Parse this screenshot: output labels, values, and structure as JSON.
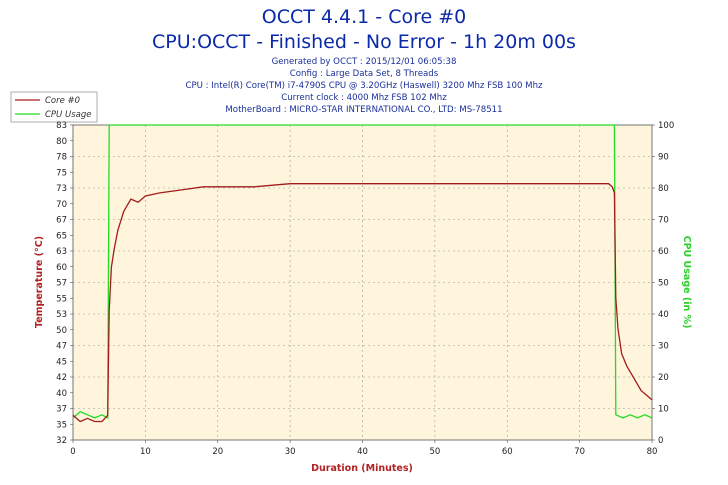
{
  "header": {
    "title": "OCCT 4.4.1 - Core #0",
    "subtitle": "CPU:OCCT - Finished - No Error - 1h 20m 00s",
    "info_lines": [
      "Generated by OCCT : 2015/12/01 06:05:38",
      "Config : Large Data Set, 8 Threads",
      "CPU : Intel(R) Core(TM) i7-4790S CPU @ 3.20GHz (Haswell) 3200 Mhz FSB 100 Mhz",
      "Current clock : 4000 Mhz FSB 102 Mhz",
      "MotherBoard : MICRO-STAR INTERNATIONAL CO., LTD: MS-78511"
    ]
  },
  "legend": {
    "items": [
      {
        "label": "Core #0",
        "color": "#aa1f1f"
      },
      {
        "label": "CPU Usage",
        "color": "#22dd22"
      }
    ]
  },
  "colors": {
    "plot_background": "#fff5dc",
    "temperature": "#a31c1c",
    "cpu_usage": "#22dd22",
    "title": "#0b2aa8",
    "info": "#1a2f9a"
  },
  "chart_data": {
    "type": "line",
    "xlabel": "Duration (Minutes)",
    "ylabel": "Temperature (°C)",
    "ylabel_right": "CPU Usage (in %)",
    "xlim": [
      0,
      80
    ],
    "ylim": [
      32,
      83
    ],
    "ylim_right": [
      0,
      100
    ],
    "x_ticks": [
      "0",
      "10",
      "20",
      "30",
      "40",
      "50",
      "60",
      "70",
      "80"
    ],
    "y_ticks": [
      "32",
      "35",
      "37",
      "40",
      "42",
      "45",
      "47",
      "50",
      "53",
      "55",
      "57",
      "60",
      "63",
      "65",
      "67",
      "70",
      "73",
      "75",
      "78",
      "80",
      "83"
    ],
    "y_ticks_right": [
      "0",
      "10",
      "20",
      "30",
      "40",
      "50",
      "60",
      "70",
      "80",
      "90",
      "100"
    ],
    "grid": true,
    "legend_position": "top-left",
    "series": [
      {
        "name": "Core #0",
        "axis": "left",
        "x": [
          0,
          1,
          2,
          3,
          4,
          4.8,
          5,
          5.3,
          5.7,
          6.2,
          7,
          8,
          9,
          10,
          12,
          15,
          18,
          20,
          25,
          30,
          35,
          40,
          45,
          50,
          55,
          60,
          65,
          70,
          72,
          74,
          74.5,
          74.8,
          75,
          75.3,
          75.8,
          76.5,
          77.5,
          78.5,
          79.5,
          80
        ],
        "y": [
          36,
          35,
          35.5,
          35,
          35,
          36,
          53,
          60,
          63,
          66,
          69,
          71,
          70.5,
          71.5,
          72,
          72.5,
          73,
          73,
          73,
          73.5,
          73.5,
          73.5,
          73.5,
          73.5,
          73.5,
          73.5,
          73.5,
          73.5,
          73.5,
          73.5,
          73,
          72,
          55,
          50,
          46,
          44,
          42,
          40,
          39,
          38.5
        ]
      },
      {
        "name": "CPU Usage",
        "axis": "right",
        "x": [
          0,
          1,
          2,
          3,
          4,
          4.8,
          5,
          74.8,
          75,
          76,
          77,
          78,
          79,
          80
        ],
        "y": [
          7,
          9,
          8,
          7,
          8,
          7,
          100,
          100,
          8,
          7,
          8,
          7,
          8,
          7
        ]
      }
    ]
  }
}
